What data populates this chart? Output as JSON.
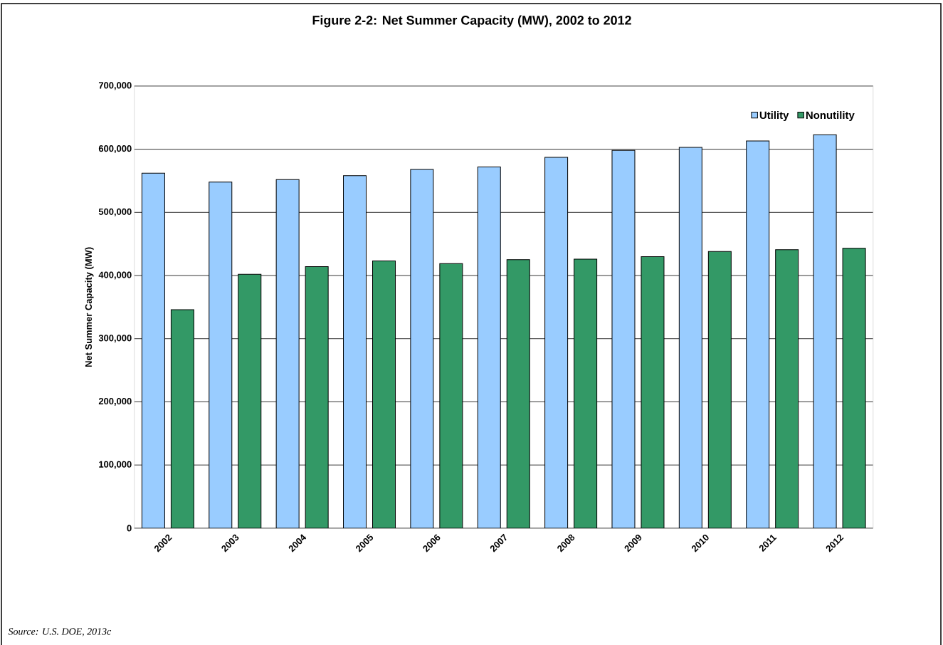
{
  "chart_data": {
    "type": "bar",
    "title": "Figure 2-2: Net Summer Capacity (MW), 2002 to 2012",
    "ylabel": "Net Summer Capacity (MW)",
    "categories": [
      "2002",
      "2003",
      "2004",
      "2005",
      "2006",
      "2007",
      "2008",
      "2009",
      "2010",
      "2011",
      "2012"
    ],
    "series": [
      {
        "name": "Utility",
        "color": "#99ccff",
        "values": [
          562000,
          548000,
          552000,
          558000,
          568000,
          572000,
          587000,
          598000,
          603000,
          613000,
          623000
        ]
      },
      {
        "name": "Nonutility",
        "color": "#339966",
        "values": [
          346000,
          402000,
          414000,
          423000,
          419000,
          425000,
          426000,
          430000,
          438000,
          441000,
          443000
        ]
      }
    ],
    "ylim": [
      0,
      700000
    ],
    "yticks": [
      {
        "value": 0,
        "label": "0"
      },
      {
        "value": 100000,
        "label": "100,000"
      },
      {
        "value": 200000,
        "label": "200,000"
      },
      {
        "value": 300000,
        "label": "300,000"
      },
      {
        "value": 400000,
        "label": "400,000"
      },
      {
        "value": 500000,
        "label": "500,000"
      },
      {
        "value": 600000,
        "label": "600,000"
      },
      {
        "value": 700000,
        "label": "700,000"
      }
    ],
    "grid": "y",
    "legend": "top right",
    "annotations": [
      "Source: U.S. DOE, 2013c"
    ]
  }
}
